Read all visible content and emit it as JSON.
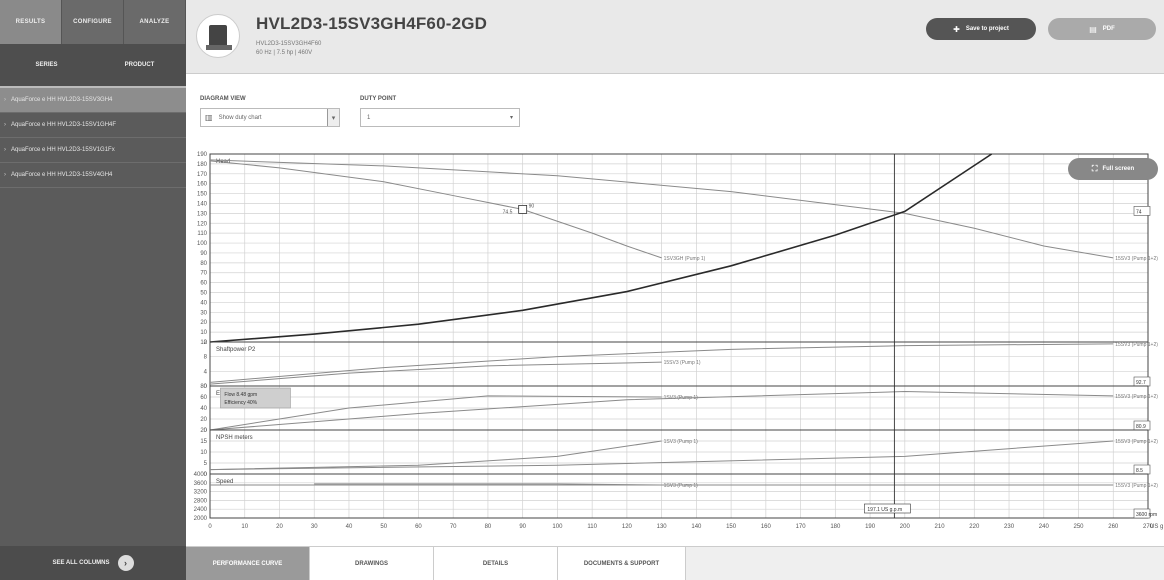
{
  "sidebar": {
    "top_tabs": [
      "Results",
      "Configure",
      "Analyze"
    ],
    "sub_tabs": [
      "Series",
      "Product"
    ],
    "series": [
      "AquaForce e HH HVL2D3-15SV3GH4",
      "AquaForce e HH HVL2D3-15SV1GH4F",
      "AquaForce e HH HVL2D3-15SV1G1Fx",
      "AquaForce e HH HVL2D3-15SV4GH4"
    ],
    "see_all": "See all columns"
  },
  "header": {
    "title": "HVL2D3-15SV3GH4F60-2GD",
    "subtitle_1": "HVL2D3-15SV3GH4F60",
    "subtitle_2": "60 Hz | 7.5 hp | 460V",
    "save_button": "Save to project",
    "pdf_button": "PDF"
  },
  "controls": {
    "diagram_view_label": "Diagram view",
    "diagram_view_value": "Show duty chart",
    "duty_point_label": "Duty point",
    "duty_point_value": "1"
  },
  "fullscreen_button": "Full screen",
  "bottom_tabs": [
    "Performance curve",
    "Drawings",
    "Details",
    "Documents & support"
  ],
  "colors": {
    "sidebar": "#5b5b5b",
    "header": "#e9e9e9",
    "grid": "#d2d2d2",
    "curve": "#8a8a8a",
    "system_curve": "#2a2a2a"
  },
  "chart_data": {
    "type": "line",
    "x": {
      "min": 0,
      "max": 270,
      "ticks": [
        0,
        10,
        20,
        30,
        40,
        50,
        60,
        70,
        80,
        90,
        100,
        110,
        120,
        130,
        140,
        150,
        160,
        170,
        180,
        190,
        200,
        210,
        220,
        230,
        240,
        250,
        260,
        270
      ],
      "unit_label": "US g"
    },
    "duty_flow": 197,
    "duty_flow_label": "197.1 US g.p.m",
    "panels": [
      {
        "name": "Head",
        "ylim": [
          0,
          190
        ],
        "yticks": [
          0,
          10,
          20,
          30,
          40,
          50,
          60,
          70,
          80,
          90,
          100,
          110,
          120,
          130,
          140,
          150,
          160,
          170,
          180,
          190
        ],
        "series": [
          {
            "name": "1SV3GH (Pump 1)",
            "x": [
              0,
              20,
              50,
              70,
              90,
              100,
              110,
              120,
              130
            ],
            "y": [
              183,
              176,
              162,
              148,
              134,
              122,
              110,
              97,
              85
            ],
            "label_x": 130
          },
          {
            "name": "15SV3 (Pump 1+2)",
            "x": [
              0,
              50,
              100,
              150,
              200,
              220,
              240,
              260
            ],
            "y": [
              184,
              178,
              168,
              152,
              130,
              115,
              97,
              85
            ],
            "label_x": 260
          },
          {
            "name": "System",
            "x": [
              0,
              30,
              60,
              90,
              120,
              150,
              180,
              200,
              225
            ],
            "y": [
              0,
              8,
              18,
              32,
              51,
              77,
              108,
              132,
              190
            ],
            "label_x": null
          }
        ],
        "duty_marker": {
          "x": 90,
          "y": 134,
          "label": "90",
          "sub": "74.5"
        },
        "right_value": "74"
      },
      {
        "name": "Shaftpower P2",
        "ylim": [
          0,
          12
        ],
        "yticks": [
          0,
          4,
          8,
          12
        ],
        "series": [
          {
            "name": "15SV3 (Pump 1+2)",
            "x": [
              0,
              50,
              100,
              150,
              200,
              260
            ],
            "y": [
              1,
              5,
              8,
              10,
              11,
              11.5
            ],
            "label_x": 260
          },
          {
            "name": "15SV3 (Pump 1)",
            "x": [
              0,
              40,
              80,
              130
            ],
            "y": [
              0.5,
              3.5,
              5.5,
              6.5
            ],
            "label_x": 130
          }
        ],
        "right_value": "92.7"
      },
      {
        "name": "Efficiency",
        "ylim": [
          0,
          80
        ],
        "yticks": [
          0,
          20,
          40,
          60,
          80
        ],
        "series": [
          {
            "name": "1SV3 (Pump 1)",
            "x": [
              0,
              40,
              80,
              130
            ],
            "y": [
              0,
              40,
              62,
              60
            ],
            "label_x": 130
          },
          {
            "name": "15SV3 (Pump 1+2)",
            "x": [
              0,
              60,
              120,
              200,
              260
            ],
            "y": [
              0,
              30,
              55,
              70,
              62
            ],
            "label_x": 260
          }
        ],
        "tooltip": [
          "Flow 8.48 gpm",
          "Efficiency 40%"
        ],
        "right_value": "80.9"
      },
      {
        "name": "NPSH meters",
        "ylim": [
          0,
          20
        ],
        "yticks": [
          0,
          5,
          10,
          15,
          20
        ],
        "series": [
          {
            "name": "1SV3 (Pump 1)",
            "x": [
              0,
              60,
              100,
              130
            ],
            "y": [
              2,
              4,
              8,
              15
            ],
            "label_x": 130
          },
          {
            "name": "15SV3 (Pump 1+2)",
            "x": [
              0,
              100,
              200,
              260
            ],
            "y": [
              2,
              4,
              8,
              15
            ],
            "label_x": 260
          }
        ],
        "right_value": "8.5"
      },
      {
        "name": "Speed",
        "ylim": [
          2000,
          4000
        ],
        "yticks": [
          2000,
          2400,
          2800,
          3200,
          3600,
          4000
        ],
        "series": [
          {
            "name": "1SV3 (Pump 1)",
            "x": [
              30,
              100,
              130
            ],
            "y": [
              3550,
              3550,
              3500
            ],
            "label_x": 130
          },
          {
            "name": "15SV3 (Pump 1+2)",
            "x": [
              0,
              200,
              260
            ],
            "y": [
              3500,
              3500,
              3500
            ],
            "label_x": 260
          }
        ],
        "right_value": "3600 rpm"
      }
    ]
  }
}
